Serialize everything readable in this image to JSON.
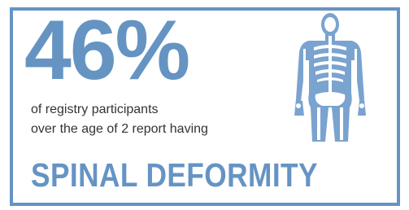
{
  "stat": {
    "value": "46%",
    "line1": "of registry participants",
    "line2": "over the age of 2 report having",
    "condition": "SPINAL DEFORMITY"
  }
}
